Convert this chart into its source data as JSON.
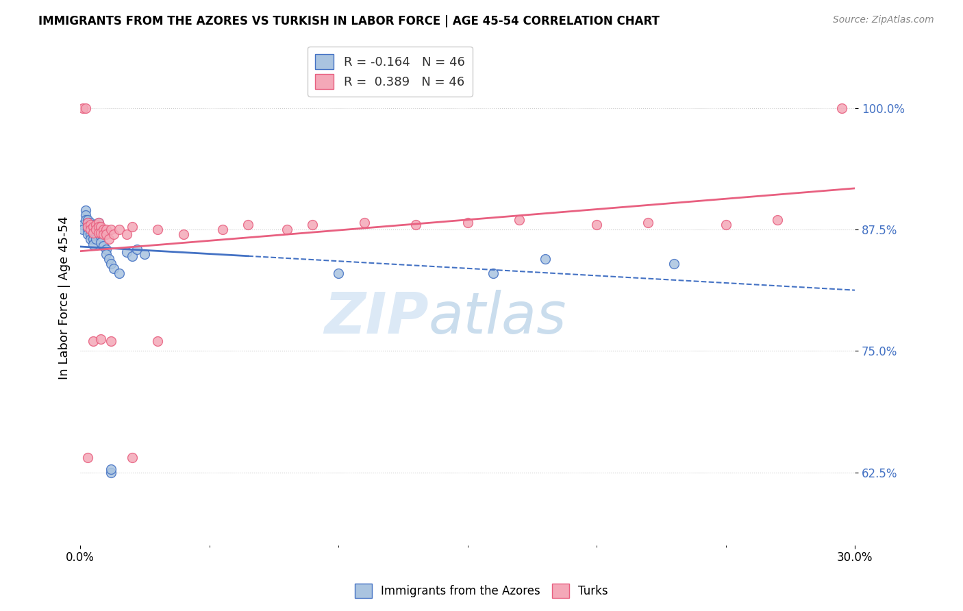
{
  "title": "IMMIGRANTS FROM THE AZORES VS TURKISH IN LABOR FORCE | AGE 45-54 CORRELATION CHART",
  "source": "Source: ZipAtlas.com",
  "ylabel": "In Labor Force | Age 45-54",
  "ytick_labels": [
    "62.5%",
    "75.0%",
    "87.5%",
    "100.0%"
  ],
  "ytick_values": [
    0.625,
    0.75,
    0.875,
    1.0
  ],
  "xlim": [
    0.0,
    0.3
  ],
  "ylim": [
    0.55,
    1.06
  ],
  "legend_r_azores": "-0.164",
  "legend_n_azores": "46",
  "legend_r_turks": "0.389",
  "legend_n_turks": "46",
  "color_azores": "#aac4e0",
  "color_turks": "#f4a8b8",
  "line_color_azores": "#4472c4",
  "line_color_turks": "#e86080",
  "watermark_zip": "ZIP",
  "watermark_atlas": "atlas",
  "azores_x": [
    0.001,
    0.001,
    0.002,
    0.002,
    0.002,
    0.003,
    0.003,
    0.003,
    0.003,
    0.003,
    0.004,
    0.004,
    0.004,
    0.004,
    0.004,
    0.005,
    0.005,
    0.005,
    0.005,
    0.005,
    0.006,
    0.006,
    0.006,
    0.006,
    0.007,
    0.007,
    0.007,
    0.008,
    0.008,
    0.009,
    0.01,
    0.01,
    0.011,
    0.012,
    0.013,
    0.015,
    0.018,
    0.02,
    0.022,
    0.025,
    0.1,
    0.16,
    0.18,
    0.23,
    0.012,
    0.012
  ],
  "azores_y": [
    0.88,
    0.875,
    0.895,
    0.89,
    0.885,
    0.885,
    0.882,
    0.878,
    0.875,
    0.87,
    0.882,
    0.878,
    0.875,
    0.87,
    0.865,
    0.88,
    0.875,
    0.87,
    0.865,
    0.86,
    0.878,
    0.875,
    0.87,
    0.865,
    0.882,
    0.878,
    0.872,
    0.868,
    0.862,
    0.858,
    0.855,
    0.85,
    0.845,
    0.84,
    0.835,
    0.83,
    0.852,
    0.848,
    0.855,
    0.85,
    0.83,
    0.83,
    0.845,
    0.84,
    0.625,
    0.628
  ],
  "turks_x": [
    0.001,
    0.002,
    0.003,
    0.003,
    0.004,
    0.004,
    0.005,
    0.005,
    0.006,
    0.006,
    0.007,
    0.007,
    0.007,
    0.008,
    0.008,
    0.009,
    0.009,
    0.01,
    0.01,
    0.011,
    0.012,
    0.013,
    0.015,
    0.018,
    0.02,
    0.03,
    0.04,
    0.055,
    0.065,
    0.08,
    0.09,
    0.11,
    0.13,
    0.15,
    0.17,
    0.2,
    0.22,
    0.25,
    0.27,
    0.295,
    0.005,
    0.008,
    0.012,
    0.02,
    0.003,
    0.03
  ],
  "turks_y": [
    1.0,
    1.0,
    0.882,
    0.878,
    0.88,
    0.875,
    0.878,
    0.872,
    0.88,
    0.875,
    0.882,
    0.878,
    0.872,
    0.878,
    0.872,
    0.875,
    0.87,
    0.875,
    0.87,
    0.865,
    0.875,
    0.87,
    0.875,
    0.87,
    0.878,
    0.875,
    0.87,
    0.875,
    0.88,
    0.875,
    0.88,
    0.882,
    0.88,
    0.882,
    0.885,
    0.88,
    0.882,
    0.88,
    0.885,
    1.0,
    0.76,
    0.762,
    0.76,
    0.64,
    0.64,
    0.76
  ]
}
